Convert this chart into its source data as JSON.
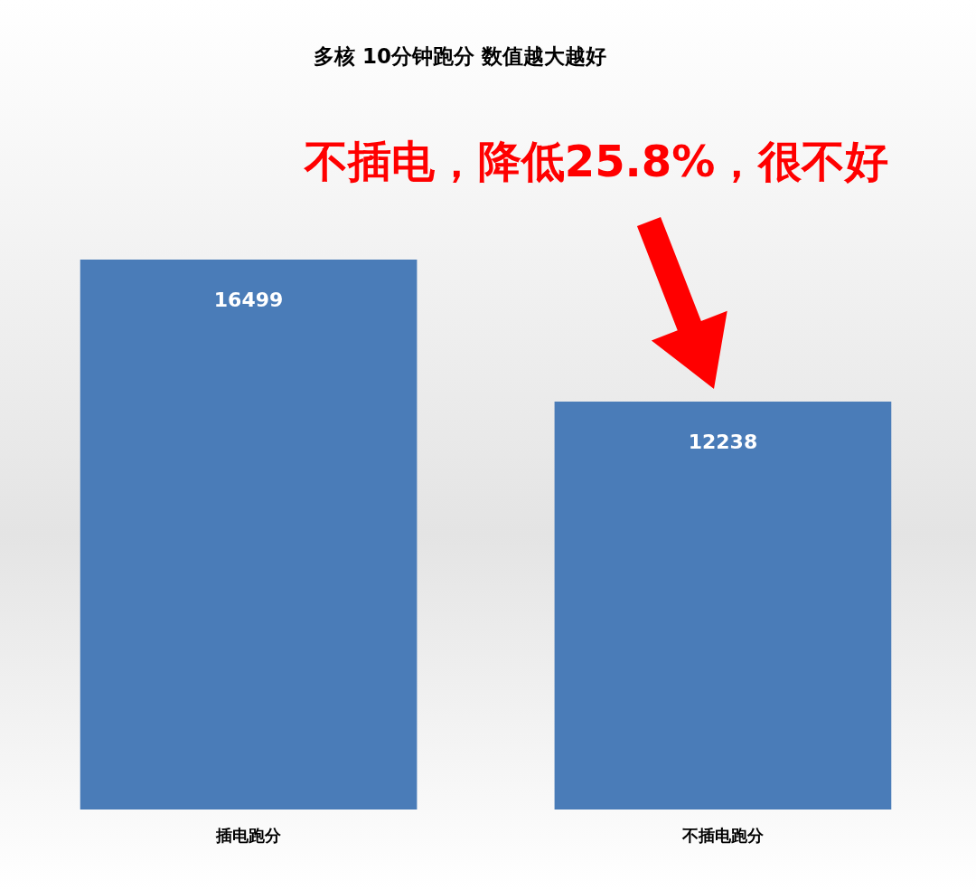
{
  "chart_data": {
    "type": "bar",
    "title": "多核 10分钟跑分 数值越大越好",
    "categories": [
      "插电跑分",
      "不插电跑分"
    ],
    "values": [
      16499,
      12238
    ],
    "color": "#4a7cb8",
    "data_labels": true,
    "annotations": [
      "不插电，降低25.8%，很不好"
    ]
  }
}
